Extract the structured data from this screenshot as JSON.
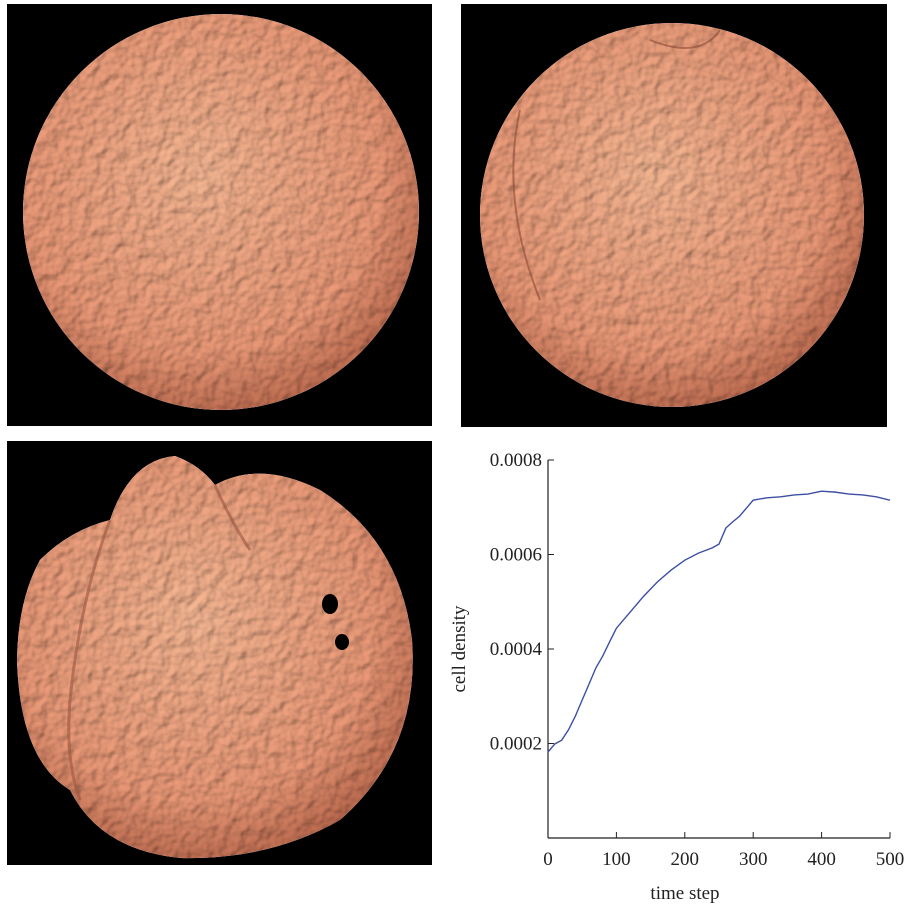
{
  "chart_data": {
    "type": "line",
    "x_label": "time step",
    "y_label": "cell density",
    "x": [
      0,
      10,
      20,
      30,
      40,
      50,
      60,
      70,
      80,
      90,
      100,
      120,
      140,
      160,
      180,
      200,
      220,
      240,
      250,
      260,
      270,
      280,
      290,
      300,
      320,
      340,
      360,
      380,
      400,
      420,
      440,
      460,
      480,
      500
    ],
    "series": [
      {
        "color": "#3d4fa3",
        "values": [
          0.000182,
          0.000199,
          0.000207,
          0.000229,
          0.000258,
          0.000292,
          0.000326,
          0.00036,
          0.000385,
          0.000415,
          0.000444,
          0.000478,
          0.000512,
          0.000542,
          0.000567,
          0.000588,
          0.000603,
          0.000614,
          0.000622,
          0.000656,
          0.000669,
          0.000681,
          0.000698,
          0.000715,
          0.00072,
          0.000722,
          0.000726,
          0.000728,
          0.000734,
          0.000732,
          0.000728,
          0.000726,
          0.000722,
          0.000715
        ]
      }
    ],
    "xlim": [
      0,
      500
    ],
    "xticks": [
      0,
      100,
      200,
      300,
      400,
      500
    ],
    "ylim": [
      0,
      0.0008
    ],
    "yticks": [
      0.0002,
      0.0004,
      0.0006,
      0.0008
    ]
  }
}
